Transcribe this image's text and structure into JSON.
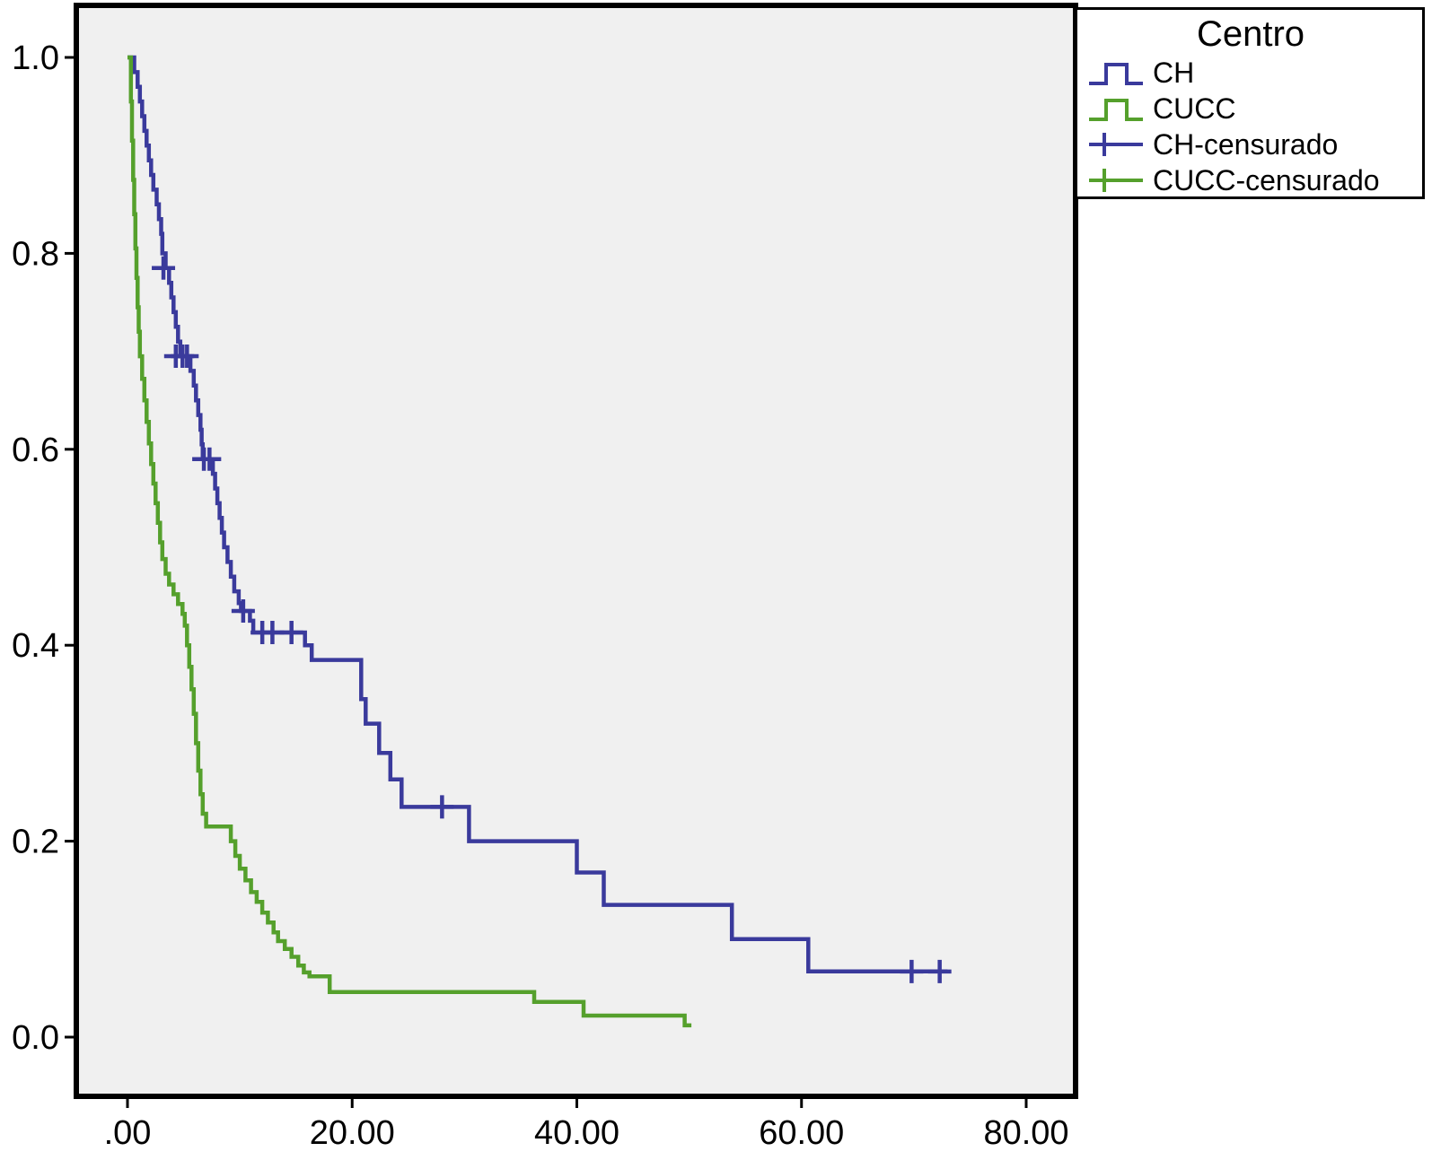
{
  "chart_data": {
    "type": "line",
    "subtype": "kaplan-meier-step",
    "title": "",
    "xlabel": "",
    "ylabel": "",
    "xlim": [
      0,
      80
    ],
    "ylim": [
      0,
      1
    ],
    "grid": false,
    "x_ticks": [
      {
        "value": 0,
        "label": ".00"
      },
      {
        "value": 20,
        "label": "20.00"
      },
      {
        "value": 40,
        "label": "40.00"
      },
      {
        "value": 60,
        "label": "60.00"
      },
      {
        "value": 80,
        "label": "80.00"
      }
    ],
    "y_ticks": [
      {
        "value": 0.0,
        "label": "0.0"
      },
      {
        "value": 0.2,
        "label": "0.2"
      },
      {
        "value": 0.4,
        "label": "0.4"
      },
      {
        "value": 0.6,
        "label": "0.6"
      },
      {
        "value": 0.8,
        "label": "0.8"
      },
      {
        "value": 1.0,
        "label": "1.0"
      }
    ],
    "legend": {
      "title": "Centro",
      "position": "top-right",
      "items": [
        {
          "label": "CH",
          "series": 0,
          "symbol": "step-line"
        },
        {
          "label": "CUCC",
          "series": 1,
          "symbol": "step-line"
        },
        {
          "label": "CH-censurado",
          "series": 0,
          "symbol": "censor-plus"
        },
        {
          "label": "CUCC-censurado",
          "series": 1,
          "symbol": "censor-plus"
        }
      ]
    },
    "colors": {
      "plot_background": "#F0F0F0",
      "axis": "#000000",
      "figure_background": "#FFFFFF"
    },
    "series": [
      {
        "name": "CH",
        "color": "#3A3A9C",
        "steps": [
          [
            0,
            1.0
          ],
          [
            0.6,
            0.985
          ],
          [
            0.9,
            0.97
          ],
          [
            1.1,
            0.955
          ],
          [
            1.3,
            0.94
          ],
          [
            1.5,
            0.925
          ],
          [
            1.7,
            0.91
          ],
          [
            1.9,
            0.895
          ],
          [
            2.1,
            0.88
          ],
          [
            2.3,
            0.865
          ],
          [
            2.6,
            0.85
          ],
          [
            2.8,
            0.835
          ],
          [
            3.0,
            0.82
          ],
          [
            3.1,
            0.8
          ],
          [
            3.4,
            0.785
          ],
          [
            3.7,
            0.77
          ],
          [
            3.9,
            0.755
          ],
          [
            4.1,
            0.74
          ],
          [
            4.3,
            0.725
          ],
          [
            4.5,
            0.71
          ],
          [
            4.7,
            0.695
          ],
          [
            5.6,
            0.68
          ],
          [
            5.9,
            0.665
          ],
          [
            6.1,
            0.65
          ],
          [
            6.3,
            0.635
          ],
          [
            6.5,
            0.62
          ],
          [
            6.6,
            0.605
          ],
          [
            6.7,
            0.59
          ],
          [
            7.6,
            0.575
          ],
          [
            7.8,
            0.56
          ],
          [
            8.0,
            0.545
          ],
          [
            8.2,
            0.53
          ],
          [
            8.4,
            0.515
          ],
          [
            8.6,
            0.5
          ],
          [
            8.9,
            0.485
          ],
          [
            9.2,
            0.47
          ],
          [
            9.5,
            0.455
          ],
          [
            9.9,
            0.443
          ],
          [
            10.1,
            0.435
          ],
          [
            10.9,
            0.425
          ],
          [
            11.2,
            0.413
          ],
          [
            15.8,
            0.4
          ],
          [
            16.4,
            0.385
          ],
          [
            20.8,
            0.345
          ],
          [
            21.2,
            0.32
          ],
          [
            22.4,
            0.29
          ],
          [
            23.4,
            0.263
          ],
          [
            24.4,
            0.235
          ],
          [
            30.4,
            0.2
          ],
          [
            40.0,
            0.168
          ],
          [
            42.4,
            0.135
          ],
          [
            53.8,
            0.1
          ],
          [
            60.6,
            0.067
          ],
          [
            73.0,
            0.067
          ]
        ],
        "censored": [
          [
            3.2,
            0.785
          ],
          [
            4.3,
            0.695
          ],
          [
            4.9,
            0.695
          ],
          [
            5.3,
            0.695
          ],
          [
            6.8,
            0.59
          ],
          [
            7.3,
            0.59
          ],
          [
            10.3,
            0.435
          ],
          [
            12.0,
            0.413
          ],
          [
            12.9,
            0.413
          ],
          [
            14.6,
            0.413
          ],
          [
            28.0,
            0.235
          ],
          [
            69.8,
            0.067
          ],
          [
            72.3,
            0.067
          ]
        ]
      },
      {
        "name": "CUCC",
        "color": "#55A02C",
        "steps": [
          [
            0,
            1.0
          ],
          [
            0.3,
            0.955
          ],
          [
            0.4,
            0.915
          ],
          [
            0.5,
            0.875
          ],
          [
            0.6,
            0.84
          ],
          [
            0.7,
            0.805
          ],
          [
            0.8,
            0.775
          ],
          [
            0.9,
            0.745
          ],
          [
            1.0,
            0.72
          ],
          [
            1.1,
            0.695
          ],
          [
            1.3,
            0.672
          ],
          [
            1.5,
            0.65
          ],
          [
            1.7,
            0.628
          ],
          [
            1.9,
            0.606
          ],
          [
            2.1,
            0.585
          ],
          [
            2.3,
            0.565
          ],
          [
            2.5,
            0.545
          ],
          [
            2.7,
            0.525
          ],
          [
            2.9,
            0.505
          ],
          [
            3.1,
            0.488
          ],
          [
            3.4,
            0.473
          ],
          [
            3.7,
            0.462
          ],
          [
            4.1,
            0.452
          ],
          [
            4.5,
            0.442
          ],
          [
            4.9,
            0.432
          ],
          [
            5.1,
            0.42
          ],
          [
            5.3,
            0.4
          ],
          [
            5.5,
            0.378
          ],
          [
            5.7,
            0.355
          ],
          [
            5.9,
            0.33
          ],
          [
            6.1,
            0.3
          ],
          [
            6.3,
            0.272
          ],
          [
            6.5,
            0.248
          ],
          [
            6.7,
            0.228
          ],
          [
            7.0,
            0.215
          ],
          [
            9.2,
            0.2
          ],
          [
            9.6,
            0.185
          ],
          [
            10.0,
            0.172
          ],
          [
            10.5,
            0.16
          ],
          [
            11.0,
            0.148
          ],
          [
            11.5,
            0.138
          ],
          [
            12.0,
            0.127
          ],
          [
            12.5,
            0.117
          ],
          [
            13.0,
            0.107
          ],
          [
            13.4,
            0.098
          ],
          [
            14.0,
            0.09
          ],
          [
            14.6,
            0.082
          ],
          [
            15.2,
            0.073
          ],
          [
            15.7,
            0.066
          ],
          [
            16.2,
            0.062
          ],
          [
            18.0,
            0.046
          ],
          [
            36.2,
            0.036
          ],
          [
            40.6,
            0.022
          ],
          [
            49.6,
            0.012
          ],
          [
            50.2,
            0.012
          ]
        ],
        "censored": []
      }
    ]
  }
}
